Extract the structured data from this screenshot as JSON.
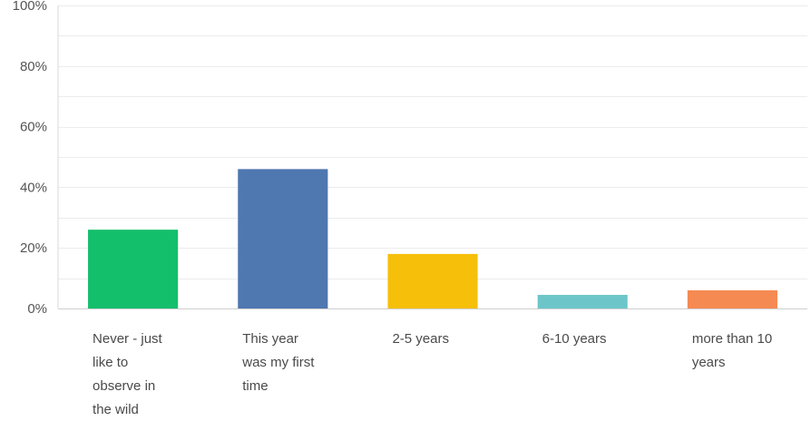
{
  "chart_data": {
    "type": "bar",
    "categories": [
      "Never - just like to observe in the wild",
      "This year was my first time",
      "2-5 years",
      "6-10 years",
      "more than 10 years"
    ],
    "category_label_lines": [
      [
        "Never - just",
        "like to",
        "observe in",
        "the wild"
      ],
      [
        "This year",
        "was my first",
        "time"
      ],
      [
        "2-5 years"
      ],
      [
        "6-10 years"
      ],
      [
        "more than 10",
        "years"
      ]
    ],
    "values": [
      26,
      46,
      18,
      4.5,
      6
    ],
    "colors": [
      "#14bf6b",
      "#4f77b0",
      "#f6bf09",
      "#6cc6c9",
      "#f58a52"
    ],
    "ylim": [
      0,
      100
    ],
    "yticks": [
      0,
      20,
      40,
      60,
      80,
      100
    ],
    "ytick_labels": [
      "0%",
      "20%",
      "40%",
      "60%",
      "80%",
      "100%"
    ],
    "minor_grid_step": 10,
    "grid": true,
    "legend": "none",
    "title": "",
    "xlabel": "",
    "ylabel": ""
  }
}
